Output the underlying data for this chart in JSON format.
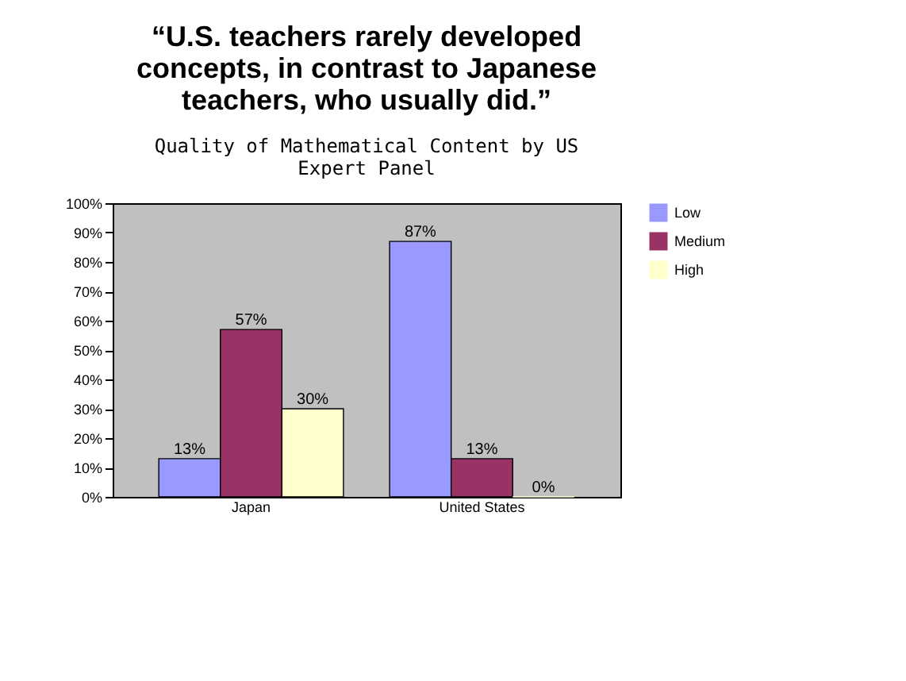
{
  "chart_data": {
    "type": "bar",
    "title": "“U.S. teachers rarely developed concepts, in contrast to Japanese teachers, who usually did.”",
    "subtitle": "Quality of Mathematical Content by US Expert Panel",
    "categories": [
      "Japan",
      "United States"
    ],
    "series": [
      {
        "name": "Low",
        "color": "#9999ff",
        "values": [
          13,
          87
        ],
        "value_labels": [
          "13%",
          "87%"
        ]
      },
      {
        "name": "Medium",
        "color": "#993366",
        "values": [
          57,
          13
        ],
        "value_labels": [
          "57%",
          "13%"
        ]
      },
      {
        "name": "High",
        "color": "#ffffcc",
        "values": [
          30,
          0
        ],
        "value_labels": [
          "30%",
          "0%"
        ]
      }
    ],
    "ylim": [
      0,
      100
    ],
    "yticks": [
      {
        "value": 0,
        "label": "0%"
      },
      {
        "value": 10,
        "label": "10%"
      },
      {
        "value": 20,
        "label": "20%"
      },
      {
        "value": 30,
        "label": "30%"
      },
      {
        "value": 40,
        "label": "40%"
      },
      {
        "value": 50,
        "label": "50%"
      },
      {
        "value": 60,
        "label": "60%"
      },
      {
        "value": 70,
        "label": "70%"
      },
      {
        "value": 80,
        "label": "80%"
      },
      {
        "value": 90,
        "label": "90%"
      },
      {
        "value": 100,
        "label": "100%"
      }
    ],
    "legend": "right"
  }
}
